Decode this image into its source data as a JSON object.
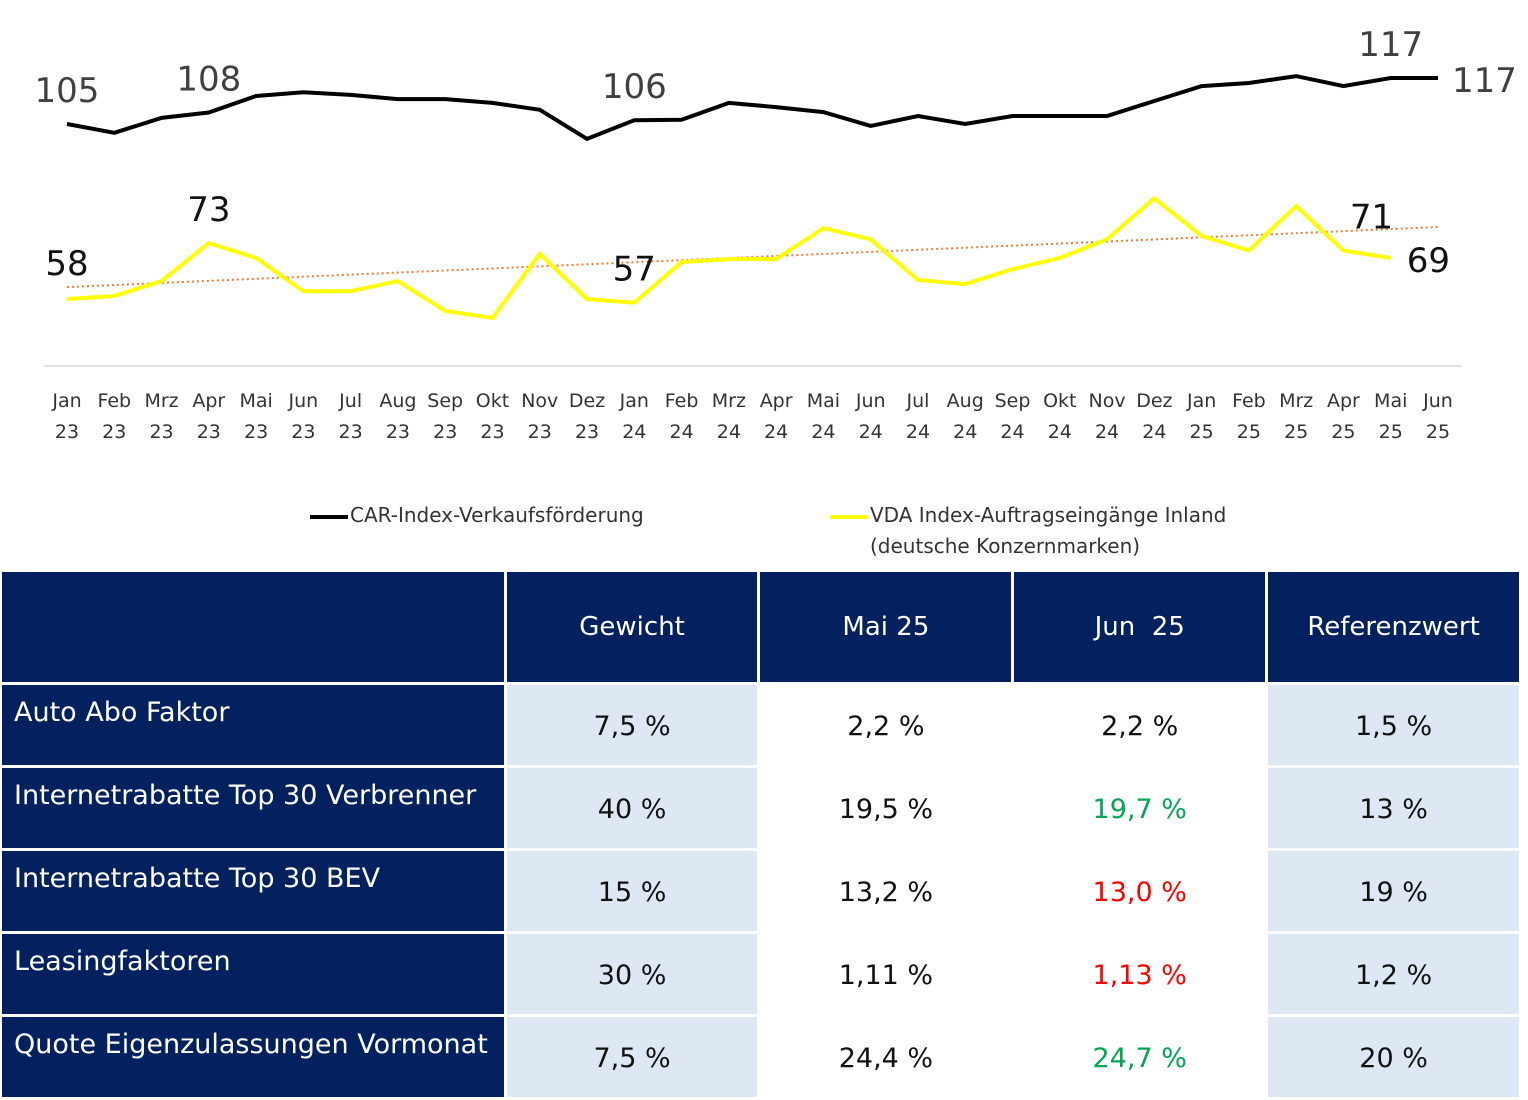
{
  "chart_data": {
    "type": "line",
    "title": "",
    "xlabel": "",
    "ylabel": "",
    "grid": false,
    "legend_position": "bottom",
    "categories": [
      "Jan 23",
      "Feb 23",
      "Mrz 23",
      "Apr 23",
      "Mai 23",
      "Jun 23",
      "Jul 23",
      "Aug 23",
      "Sep 23",
      "Okt 23",
      "Nov 23",
      "Dez 23",
      "Jan 24",
      "Feb 24",
      "Mrz 24",
      "Apr 24",
      "Mai 24",
      "Jun 24",
      "Jul 24",
      "Aug 24",
      "Sep 24",
      "Okt 24",
      "Nov 24",
      "Dez 24",
      "Jan 25",
      "Feb 25",
      "Mrz 25",
      "Apr 25",
      "Mai 25",
      "Jun 25"
    ],
    "category_lines": [
      [
        "Jan",
        "23"
      ],
      [
        "Feb",
        "23"
      ],
      [
        "Mrz",
        "23"
      ],
      [
        "Apr",
        "23"
      ],
      [
        "Mai",
        "23"
      ],
      [
        "Jun",
        "23"
      ],
      [
        "Jul",
        "23"
      ],
      [
        "Aug",
        "23"
      ],
      [
        "Sep",
        "23"
      ],
      [
        "Okt",
        "23"
      ],
      [
        "Nov",
        "23"
      ],
      [
        "Dez",
        "23"
      ],
      [
        "Jan",
        "24"
      ],
      [
        "Feb",
        "24"
      ],
      [
        "Mrz",
        "24"
      ],
      [
        "Apr",
        "24"
      ],
      [
        "Mai",
        "24"
      ],
      [
        "Jun",
        "24"
      ],
      [
        "Jul",
        "24"
      ],
      [
        "Aug",
        "24"
      ],
      [
        "Sep",
        "24"
      ],
      [
        "Okt",
        "24"
      ],
      [
        "Nov",
        "24"
      ],
      [
        "Dez",
        "24"
      ],
      [
        "Jan",
        "25"
      ],
      [
        "Feb",
        "25"
      ],
      [
        "Mrz",
        "25"
      ],
      [
        "Apr",
        "25"
      ],
      [
        "Mai",
        "25"
      ],
      [
        "Jun",
        "25"
      ]
    ],
    "series": [
      {
        "name": "CAR-Index-Verkaufsförderung",
        "color": "#000000",
        "values": [
          105,
          102.7,
          106.6,
          108,
          112.3,
          113.3,
          112.6,
          111.5,
          111.5,
          110.5,
          108.7,
          101.1,
          106,
          106.1,
          110.5,
          109.4,
          108.1,
          104.5,
          107.1,
          105,
          107.1,
          107.1,
          107.1,
          111,
          114.9,
          115.7,
          117.5,
          114.9,
          117,
          117
        ],
        "data_labels": [
          {
            "index": 0,
            "text": "105"
          },
          {
            "index": 3,
            "text": "108"
          },
          {
            "index": 12,
            "text": "106"
          },
          {
            "index": 28,
            "text": "117"
          },
          {
            "index": 29,
            "text": "117"
          }
        ]
      },
      {
        "name": "VDA Index-Auftragseingänge Inland (deutsche Konzernmarken)",
        "color": "#ffff00",
        "values": [
          58,
          58.8,
          62.8,
          73,
          69,
          60.1,
          60.1,
          62.8,
          54.8,
          52.9,
          70.1,
          58,
          57,
          67.9,
          68.7,
          68.7,
          77,
          74,
          63.1,
          62,
          66,
          69,
          74,
          85,
          74.9,
          71,
          82.9,
          71,
          69,
          null
        ],
        "data_labels": [
          {
            "index": 0,
            "text": "58"
          },
          {
            "index": 3,
            "text": "73"
          },
          {
            "index": 12,
            "text": "57"
          },
          {
            "index": 27,
            "text": "71"
          },
          {
            "index": 28,
            "text": "69"
          }
        ]
      }
    ],
    "trendline": {
      "series": "VDA Index-Auftragseingänge Inland (deutsche Konzernmarken)",
      "type": "linear",
      "color": "#f07c30",
      "style": "dotted",
      "start": 61.2,
      "end": 77.3
    }
  },
  "legend": {
    "car_label": "CAR-Index-Verkaufsförderung",
    "vda_label_line1": "VDA Index-Auftragseingänge Inland",
    "vda_label_line2": "(deutsche Konzernmarken)"
  },
  "table": {
    "headers": [
      "",
      "Gewicht",
      "Mai 25",
      "Jun  25",
      "Referenzwert"
    ],
    "rows": [
      {
        "label": "Auto Abo Faktor",
        "gewicht": "7,5 %",
        "mai": "2,2 %",
        "jun": "2,2 %",
        "jun_color": "#111111",
        "ref": "1,5 %"
      },
      {
        "label": "Internetrabatte Top 30 Verbrenner",
        "gewicht": "40 %",
        "mai": "19,5 %",
        "jun": "19,7 %",
        "jun_color": "#00a651",
        "ref": "13 %"
      },
      {
        "label": "Internetrabatte Top 30 BEV",
        "gewicht": "15 %",
        "mai": "13,2 %",
        "jun": "13,0 %",
        "jun_color": "#ff0000",
        "ref": "19 %"
      },
      {
        "label": "Leasingfaktoren",
        "gewicht": "30 %",
        "mai": "1,11 %",
        "jun": "1,13 %",
        "jun_color": "#ff0000",
        "ref": "1,2 %"
      },
      {
        "label": "Quote Eigenzulassungen Vormonat",
        "gewicht": "7,5 %",
        "mai": "24,4 %",
        "jun": "24,7 %",
        "jun_color": "#00a651",
        "ref": "20 %"
      }
    ]
  },
  "colors": {
    "header_bg": "#03215e",
    "cell_shade": "#dee8f4",
    "positive": "#00a651",
    "negative": "#ff0000"
  }
}
